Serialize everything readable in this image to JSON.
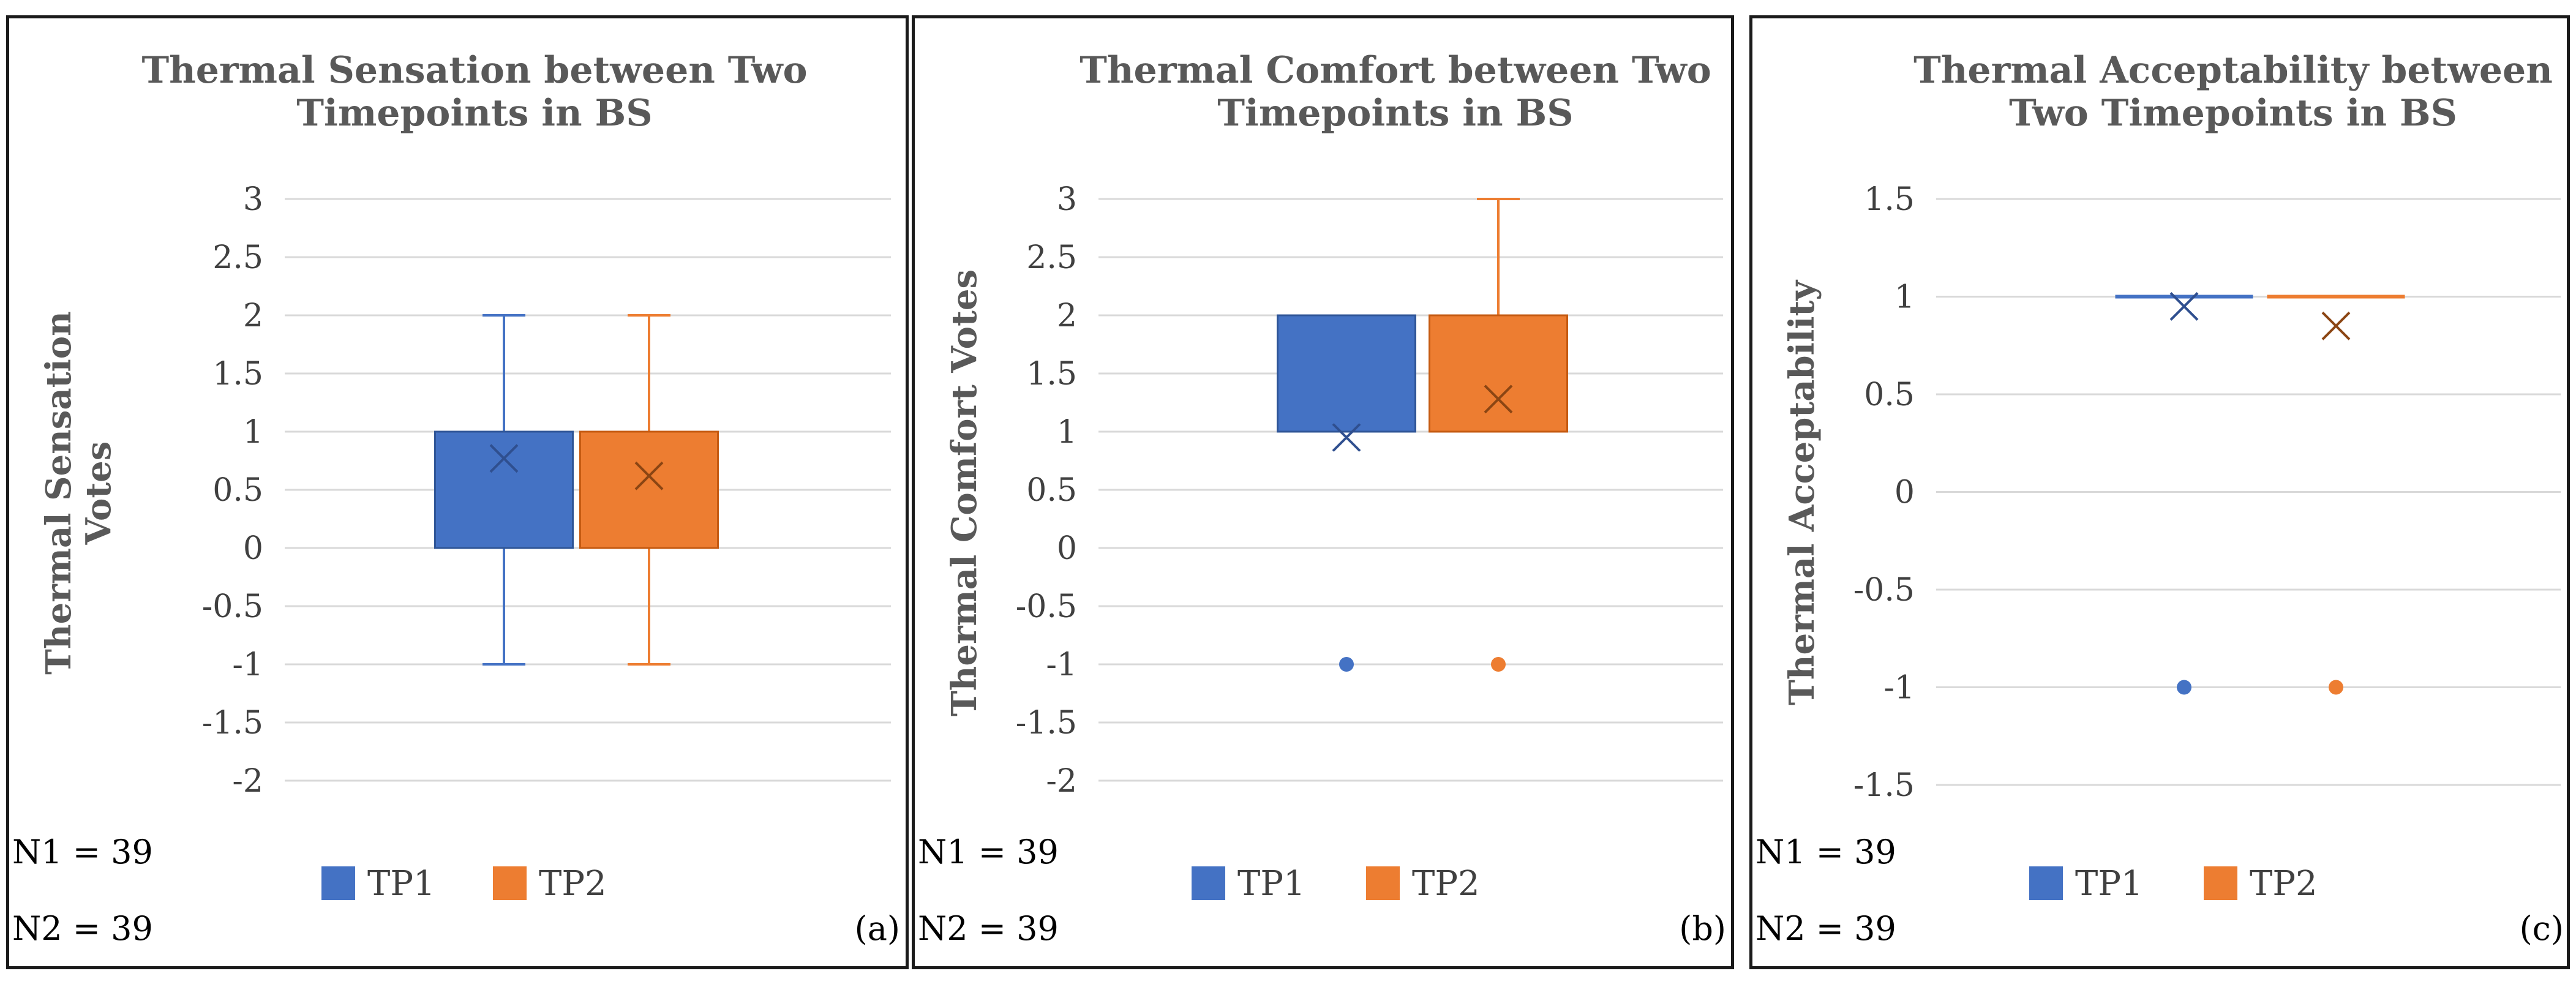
{
  "colors": {
    "tp1": "#4472C4",
    "tp2": "#ED7D31",
    "grid": "#D9D9D9",
    "text": "#595959"
  },
  "legend": {
    "tp1": "TP1",
    "tp2": "TP2"
  },
  "sample_sizes": {
    "n1": "N1 = 39",
    "n2": "N2 = 39"
  },
  "chart_data": [
    {
      "type": "box",
      "panel": "(a)",
      "title_lines": [
        "Thermal Sensation between Two",
        "Timepoints in BS"
      ],
      "ylabel_lines": [
        "Thermal Sensation",
        "Votes"
      ],
      "ylim": [
        -2,
        3
      ],
      "yticks": [
        "3",
        "2.5",
        "2",
        "1.5",
        "1",
        "0.5",
        "0",
        "-0.5",
        "-1",
        "-1.5",
        "-2"
      ],
      "series": [
        {
          "name": "TP1",
          "min": -1,
          "q1": 0,
          "median": 1,
          "q3": 1,
          "max": 2,
          "mean": 0.77,
          "outliers": []
        },
        {
          "name": "TP2",
          "min": -1,
          "q1": 0,
          "median": 1,
          "q3": 1,
          "max": 2,
          "mean": 0.62,
          "outliers": []
        }
      ]
    },
    {
      "type": "box",
      "panel": "(b)",
      "title_lines": [
        "Thermal Comfort between Two",
        "Timepoints in BS"
      ],
      "ylabel_lines": [
        "Thermal Comfort Votes"
      ],
      "ylim": [
        -2,
        3
      ],
      "yticks": [
        "3",
        "2.5",
        "2",
        "1.5",
        "1",
        "0.5",
        "0",
        "-0.5",
        "-1",
        "-1.5",
        "-2"
      ],
      "series": [
        {
          "name": "TP1",
          "min": 1,
          "q1": 1,
          "median": 1,
          "q3": 2,
          "max": 2,
          "mean": 0.95,
          "outliers": [
            -1
          ]
        },
        {
          "name": "TP2",
          "min": 1,
          "q1": 1,
          "median": 2,
          "q3": 2,
          "max": 3,
          "mean": 1.28,
          "outliers": [
            -1
          ]
        }
      ]
    },
    {
      "type": "box",
      "panel": "(c)",
      "title_lines": [
        "Thermal Acceptability between",
        "Two Timepoints in BS"
      ],
      "ylabel_lines": [
        "Thermal Acceptability"
      ],
      "ylim": [
        -1.5,
        1.5
      ],
      "yticks": [
        "1.5",
        "1",
        "0.5",
        "0",
        "-0.5",
        "-1",
        "-1.5"
      ],
      "series": [
        {
          "name": "TP1",
          "min": 1,
          "q1": 1,
          "median": 1,
          "q3": 1,
          "max": 1,
          "mean": 0.95,
          "outliers": [
            -1
          ]
        },
        {
          "name": "TP2",
          "min": 1,
          "q1": 1,
          "median": 1,
          "q3": 1,
          "max": 1,
          "mean": 0.85,
          "outliers": [
            -1
          ]
        }
      ]
    }
  ]
}
